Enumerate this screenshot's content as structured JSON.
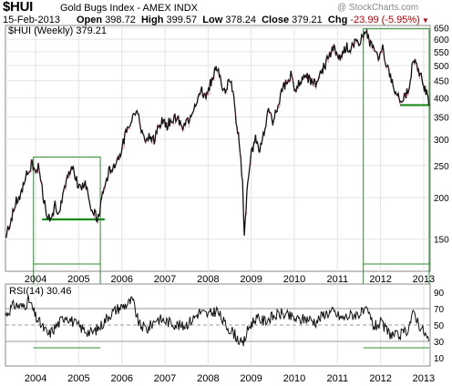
{
  "header": {
    "ticker": "$HUI",
    "index_name": "Gold Bugs Index - AMEX INDX",
    "credit": "@ StockCharts.com",
    "date": "15-Feb-2013",
    "open_label": "Open",
    "open": "398.72",
    "high_label": "High",
    "high": "399.57",
    "low_label": "Low",
    "low": "378.24",
    "close_label": "Close",
    "close": "379.21",
    "chg_label": "Chg",
    "chg": "-23.99 (-5.95%)",
    "down_color": "#c00000"
  },
  "chart_data": [
    {
      "type": "line",
      "legend": "$HUI (Weekly) 379.21",
      "scale": "log",
      "ylim": [
        120,
        660
      ],
      "y_ticks": [
        650,
        600,
        550,
        500,
        450,
        400,
        350,
        300,
        250,
        200,
        150
      ],
      "x_tick_labels": [
        "2004",
        "2005",
        "2006",
        "2007",
        "2008",
        "2009",
        "2010",
        "2011",
        "2012",
        "2013"
      ],
      "x_tick_years": [
        2004,
        2005,
        2006,
        2007,
        2008,
        2009,
        2010,
        2011,
        2012,
        2013
      ],
      "xlim": [
        2003.3,
        2013.15
      ],
      "series": [
        {
          "name": "$HUI",
          "points": [
            [
              2003.3,
              152
            ],
            [
              2003.45,
              175
            ],
            [
              2003.55,
              195
            ],
            [
              2003.65,
              200
            ],
            [
              2003.75,
              230
            ],
            [
              2003.85,
              240
            ],
            [
              2003.92,
              255
            ],
            [
              2004.0,
              242
            ],
            [
              2004.08,
              250
            ],
            [
              2004.15,
              212
            ],
            [
              2004.25,
              180
            ],
            [
              2004.35,
              172
            ],
            [
              2004.45,
              190
            ],
            [
              2004.55,
              180
            ],
            [
              2004.65,
              205
            ],
            [
              2004.75,
              230
            ],
            [
              2004.85,
              245
            ],
            [
              2004.95,
              225
            ],
            [
              2005.05,
              210
            ],
            [
              2005.15,
              225
            ],
            [
              2005.25,
              195
            ],
            [
              2005.35,
              180
            ],
            [
              2005.45,
              172
            ],
            [
              2005.55,
              205
            ],
            [
              2005.7,
              240
            ],
            [
              2005.85,
              255
            ],
            [
              2005.95,
              270
            ],
            [
              2006.05,
              300
            ],
            [
              2006.15,
              330
            ],
            [
              2006.25,
              355
            ],
            [
              2006.35,
              370
            ],
            [
              2006.45,
              320
            ],
            [
              2006.55,
              300
            ],
            [
              2006.65,
              310
            ],
            [
              2006.75,
              295
            ],
            [
              2006.85,
              330
            ],
            [
              2006.95,
              340
            ],
            [
              2007.05,
              330
            ],
            [
              2007.15,
              345
            ],
            [
              2007.25,
              350
            ],
            [
              2007.35,
              335
            ],
            [
              2007.45,
              330
            ],
            [
              2007.55,
              345
            ],
            [
              2007.65,
              370
            ],
            [
              2007.75,
              400
            ],
            [
              2007.85,
              420
            ],
            [
              2007.95,
              400
            ],
            [
              2008.05,
              440
            ],
            [
              2008.15,
              480
            ],
            [
              2008.22,
              500
            ],
            [
              2008.3,
              440
            ],
            [
              2008.4,
              420
            ],
            [
              2008.5,
              450
            ],
            [
              2008.58,
              420
            ],
            [
              2008.65,
              330
            ],
            [
              2008.72,
              300
            ],
            [
              2008.8,
              220
            ],
            [
              2008.84,
              150
            ],
            [
              2008.9,
              210
            ],
            [
              2009.0,
              270
            ],
            [
              2009.1,
              300
            ],
            [
              2009.2,
              280
            ],
            [
              2009.3,
              320
            ],
            [
              2009.4,
              360
            ],
            [
              2009.5,
              340
            ],
            [
              2009.6,
              370
            ],
            [
              2009.7,
              420
            ],
            [
              2009.8,
              440
            ],
            [
              2009.92,
              470
            ],
            [
              2010.0,
              420
            ],
            [
              2010.1,
              440
            ],
            [
              2010.2,
              450
            ],
            [
              2010.3,
              460
            ],
            [
              2010.4,
              450
            ],
            [
              2010.5,
              440
            ],
            [
              2010.6,
              470
            ],
            [
              2010.7,
              500
            ],
            [
              2010.8,
              530
            ],
            [
              2010.92,
              570
            ],
            [
              2011.0,
              520
            ],
            [
              2011.1,
              540
            ],
            [
              2011.2,
              570
            ],
            [
              2011.3,
              560
            ],
            [
              2011.4,
              580
            ],
            [
              2011.5,
              590
            ],
            [
              2011.6,
              620
            ],
            [
              2011.68,
              630
            ],
            [
              2011.75,
              590
            ],
            [
              2011.85,
              550
            ],
            [
              2011.95,
              530
            ],
            [
              2012.05,
              560
            ],
            [
              2012.15,
              500
            ],
            [
              2012.25,
              450
            ],
            [
              2012.35,
              420
            ],
            [
              2012.45,
              400
            ],
            [
              2012.55,
              400
            ],
            [
              2012.65,
              430
            ],
            [
              2012.75,
              510
            ],
            [
              2012.8,
              525
            ],
            [
              2012.88,
              490
            ],
            [
              2012.96,
              450
            ],
            [
              2013.05,
              420
            ],
            [
              2013.12,
              379
            ]
          ]
        }
      ],
      "support_lines": [
        {
          "x1": 2004.15,
          "x2": 2005.6,
          "y": 172
        },
        {
          "x1": 2012.45,
          "x2": 2013.15,
          "y": 380
        }
      ],
      "highlight_boxes": [
        {
          "x1": 2003.95,
          "x2": 2005.5,
          "y_top": 265
        },
        {
          "x1": 2011.6,
          "x2": 2013.15,
          "y_top": 645
        }
      ]
    },
    {
      "type": "line",
      "legend": "RSI(14) 30.46",
      "ylim": [
        0,
        100
      ],
      "y_ticks": [
        90,
        70,
        50,
        30,
        10
      ],
      "reference_lines": [
        70,
        50,
        30
      ],
      "x_tick_labels": [
        "2004",
        "2005",
        "2006",
        "2007",
        "2008",
        "2009",
        "2010",
        "2011",
        "2012",
        "2013"
      ],
      "x_tick_years": [
        2004,
        2005,
        2006,
        2007,
        2008,
        2009,
        2010,
        2011,
        2012,
        2013
      ],
      "xlim": [
        2003.3,
        2013.15
      ],
      "series": [
        {
          "name": "RSI(14)",
          "points": [
            [
              2003.3,
              62
            ],
            [
              2003.5,
              75
            ],
            [
              2003.7,
              72
            ],
            [
              2003.85,
              80
            ],
            [
              2004.0,
              60
            ],
            [
              2004.15,
              48
            ],
            [
              2004.3,
              38
            ],
            [
              2004.5,
              50
            ],
            [
              2004.7,
              62
            ],
            [
              2004.9,
              52
            ],
            [
              2005.1,
              45
            ],
            [
              2005.3,
              40
            ],
            [
              2005.5,
              48
            ],
            [
              2005.7,
              62
            ],
            [
              2005.9,
              70
            ],
            [
              2006.1,
              75
            ],
            [
              2006.25,
              80
            ],
            [
              2006.4,
              50
            ],
            [
              2006.6,
              45
            ],
            [
              2006.8,
              58
            ],
            [
              2007.0,
              55
            ],
            [
              2007.2,
              52
            ],
            [
              2007.4,
              48
            ],
            [
              2007.6,
              55
            ],
            [
              2007.8,
              66
            ],
            [
              2008.0,
              62
            ],
            [
              2008.2,
              68
            ],
            [
              2008.4,
              50
            ],
            [
              2008.6,
              40
            ],
            [
              2008.8,
              25
            ],
            [
              2008.95,
              48
            ],
            [
              2009.1,
              58
            ],
            [
              2009.3,
              55
            ],
            [
              2009.5,
              60
            ],
            [
              2009.7,
              64
            ],
            [
              2009.9,
              60
            ],
            [
              2010.1,
              56
            ],
            [
              2010.3,
              58
            ],
            [
              2010.5,
              54
            ],
            [
              2010.7,
              64
            ],
            [
              2010.9,
              66
            ],
            [
              2011.1,
              58
            ],
            [
              2011.3,
              62
            ],
            [
              2011.5,
              64
            ],
            [
              2011.7,
              66
            ],
            [
              2011.85,
              48
            ],
            [
              2012.0,
              52
            ],
            [
              2012.2,
              40
            ],
            [
              2012.4,
              36
            ],
            [
              2012.6,
              42
            ],
            [
              2012.78,
              66
            ],
            [
              2012.9,
              50
            ],
            [
              2013.0,
              42
            ],
            [
              2013.12,
              30.5
            ]
          ]
        }
      ]
    }
  ]
}
